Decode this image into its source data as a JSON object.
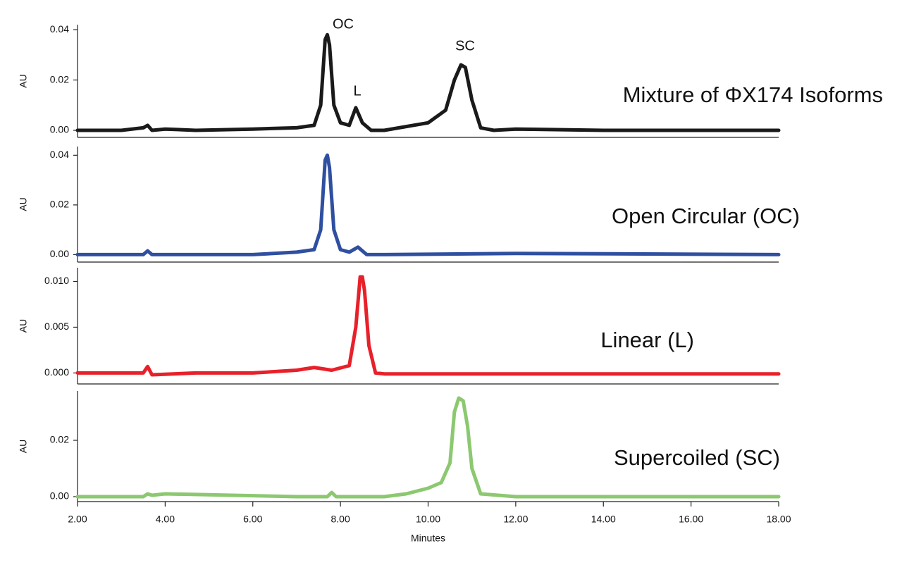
{
  "chart_data": [
    {
      "type": "line",
      "title": "Mixture of ΦX174 Isoforms",
      "ylabel": "AU",
      "color": "#1a1a1a",
      "annotations": [
        "OC",
        "L",
        "SC"
      ],
      "x": [
        2,
        3,
        3.5,
        3.6,
        3.7,
        4,
        4.7,
        6,
        7,
        7.4,
        7.55,
        7.65,
        7.7,
        7.75,
        7.85,
        8.0,
        8.2,
        8.35,
        8.5,
        8.7,
        9,
        10,
        10.4,
        10.6,
        10.75,
        10.85,
        11,
        11.2,
        11.5,
        12,
        14,
        16,
        18
      ],
      "values": [
        0,
        0,
        0.001,
        0.002,
        0,
        0.0005,
        0,
        0.0005,
        0.001,
        0.002,
        0.01,
        0.036,
        0.038,
        0.034,
        0.01,
        0.003,
        0.002,
        0.009,
        0.003,
        0,
        0,
        0.003,
        0.008,
        0.02,
        0.026,
        0.025,
        0.012,
        0.001,
        0,
        0.0005,
        0,
        0,
        0
      ],
      "xlim": [
        2,
        18
      ],
      "ylim": [
        -0.0028,
        0.042
      ],
      "yticks": [
        {
          "value": 0,
          "label": "0.00"
        },
        0.02,
        0.04
      ]
    },
    {
      "type": "line",
      "title": "Open Circular (OC)",
      "ylabel": "AU",
      "color": "#2f4fa0",
      "x": [
        2,
        3.5,
        3.6,
        3.7,
        6,
        7,
        7.4,
        7.55,
        7.65,
        7.7,
        7.75,
        7.85,
        8.0,
        8.2,
        8.4,
        8.6,
        9,
        12,
        18
      ],
      "values": [
        0,
        0,
        0.0015,
        0,
        0,
        0.001,
        0.002,
        0.01,
        0.038,
        0.04,
        0.035,
        0.01,
        0.002,
        0.001,
        0.003,
        0,
        0,
        0.0005,
        0
      ],
      "xlim": [
        2,
        18
      ],
      "ylim": [
        -0.003,
        0.0435
      ],
      "yticks": [
        {
          "value": 0,
          "label": "0.00"
        },
        0.02,
        0.04
      ]
    },
    {
      "type": "line",
      "title": "Linear (L)",
      "ylabel": "AU",
      "color": "#e8202a",
      "x": [
        2,
        3.5,
        3.6,
        3.7,
        4.7,
        6,
        7,
        7.4,
        7.8,
        8.2,
        8.35,
        8.45,
        8.5,
        8.55,
        8.65,
        8.8,
        9,
        16.2,
        18
      ],
      "values": [
        0,
        0,
        0.0007,
        -0.0002,
        0,
        0,
        0.0003,
        0.0006,
        0.0003,
        0.0008,
        0.005,
        0.0105,
        0.0105,
        0.009,
        0.003,
        0,
        -0.0001,
        -0.0001,
        -0.0001
      ],
      "xlim": [
        2,
        18
      ],
      "ylim": [
        -0.0012,
        0.0115
      ],
      "yticks": [
        {
          "value": 0,
          "label": "0.000"
        },
        0.005,
        {
          "value": 0.01,
          "label": "0.010"
        }
      ]
    },
    {
      "type": "line",
      "title": "Supercoiled (SC)",
      "ylabel": "AU",
      "color": "#8cc870",
      "xlabel": "Minutes",
      "x": [
        2,
        3.5,
        3.6,
        3.7,
        4,
        7,
        7.7,
        7.8,
        7.9,
        9,
        9.5,
        10,
        10.3,
        10.5,
        10.6,
        10.7,
        10.8,
        10.9,
        11.0,
        11.2,
        12,
        14,
        18
      ],
      "values": [
        0,
        0,
        0.001,
        0.0005,
        0.001,
        0,
        0,
        0.0015,
        0,
        0,
        0.001,
        0.003,
        0.005,
        0.012,
        0.03,
        0.035,
        0.034,
        0.025,
        0.01,
        0.001,
        0,
        0,
        0
      ],
      "xlim": [
        2,
        18
      ],
      "ylim": [
        -0.00175,
        0.0375
      ],
      "yticks": [
        {
          "value": 0,
          "label": "0.00"
        },
        0.02
      ],
      "xticks": [
        {
          "value": 2,
          "label": "2.00"
        },
        {
          "value": 4,
          "label": "4.00"
        },
        {
          "value": 6,
          "label": "6.00"
        },
        {
          "value": 8,
          "label": "8.00"
        },
        {
          "value": 10,
          "label": "10.00"
        },
        {
          "value": 12,
          "label": "12.00"
        },
        {
          "value": 14,
          "label": "14.00"
        },
        {
          "value": 16,
          "label": "16.00"
        },
        {
          "value": 18,
          "label": "18.00"
        }
      ]
    }
  ]
}
